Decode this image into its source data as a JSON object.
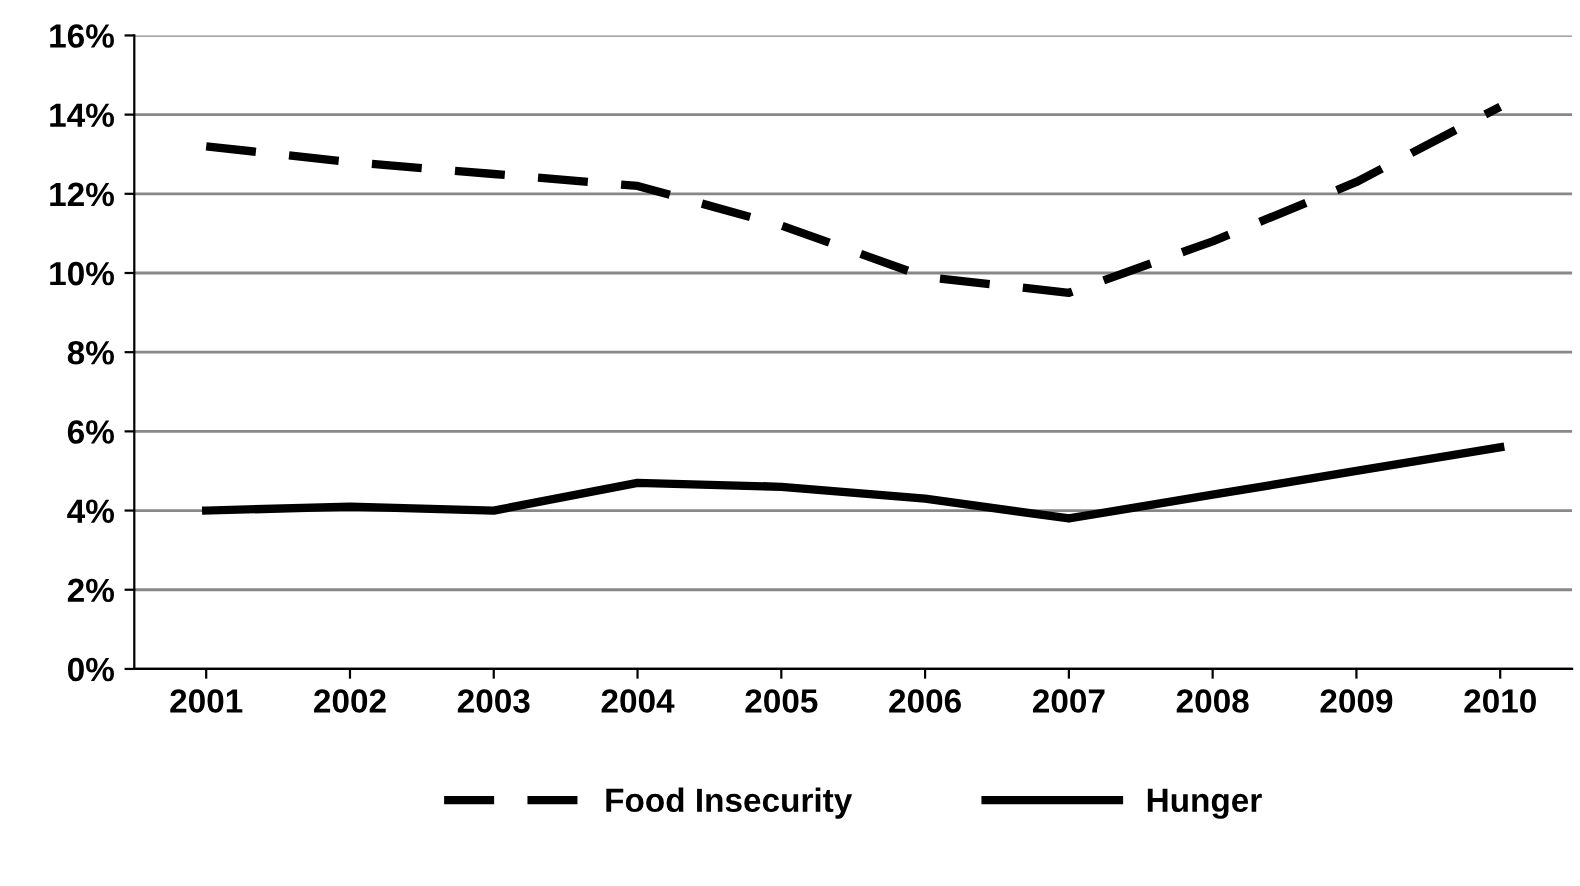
{
  "chart_data": {
    "type": "line",
    "categories": [
      "2001",
      "2002",
      "2003",
      "2004",
      "2005",
      "2006",
      "2007",
      "2008",
      "2009",
      "2010"
    ],
    "series": [
      {
        "name": "Food Insecurity",
        "color": "#000000",
        "line_style": "dashed",
        "values": [
          13.2,
          12.8,
          12.5,
          12.2,
          11.2,
          9.9,
          9.5,
          10.8,
          12.3,
          14.2
        ]
      },
      {
        "name": "Hunger",
        "color": "#000000",
        "line_style": "solid",
        "values": [
          4.0,
          4.1,
          4.0,
          4.7,
          4.6,
          4.3,
          3.8,
          4.4,
          5.0,
          5.6
        ]
      }
    ],
    "ylim": [
      0,
      16
    ],
    "yticks": [
      {
        "value": 0,
        "label": "0%"
      },
      {
        "value": 2,
        "label": "2%"
      },
      {
        "value": 4,
        "label": "4%"
      },
      {
        "value": 6,
        "label": "6%"
      },
      {
        "value": 8,
        "label": "8%"
      },
      {
        "value": 10,
        "label": "10%"
      },
      {
        "value": 12,
        "label": "12%"
      },
      {
        "value": 14,
        "label": "14%"
      },
      {
        "value": 16,
        "label": "16%"
      }
    ],
    "grid": "y",
    "legend": "bottom",
    "marker": "none"
  }
}
